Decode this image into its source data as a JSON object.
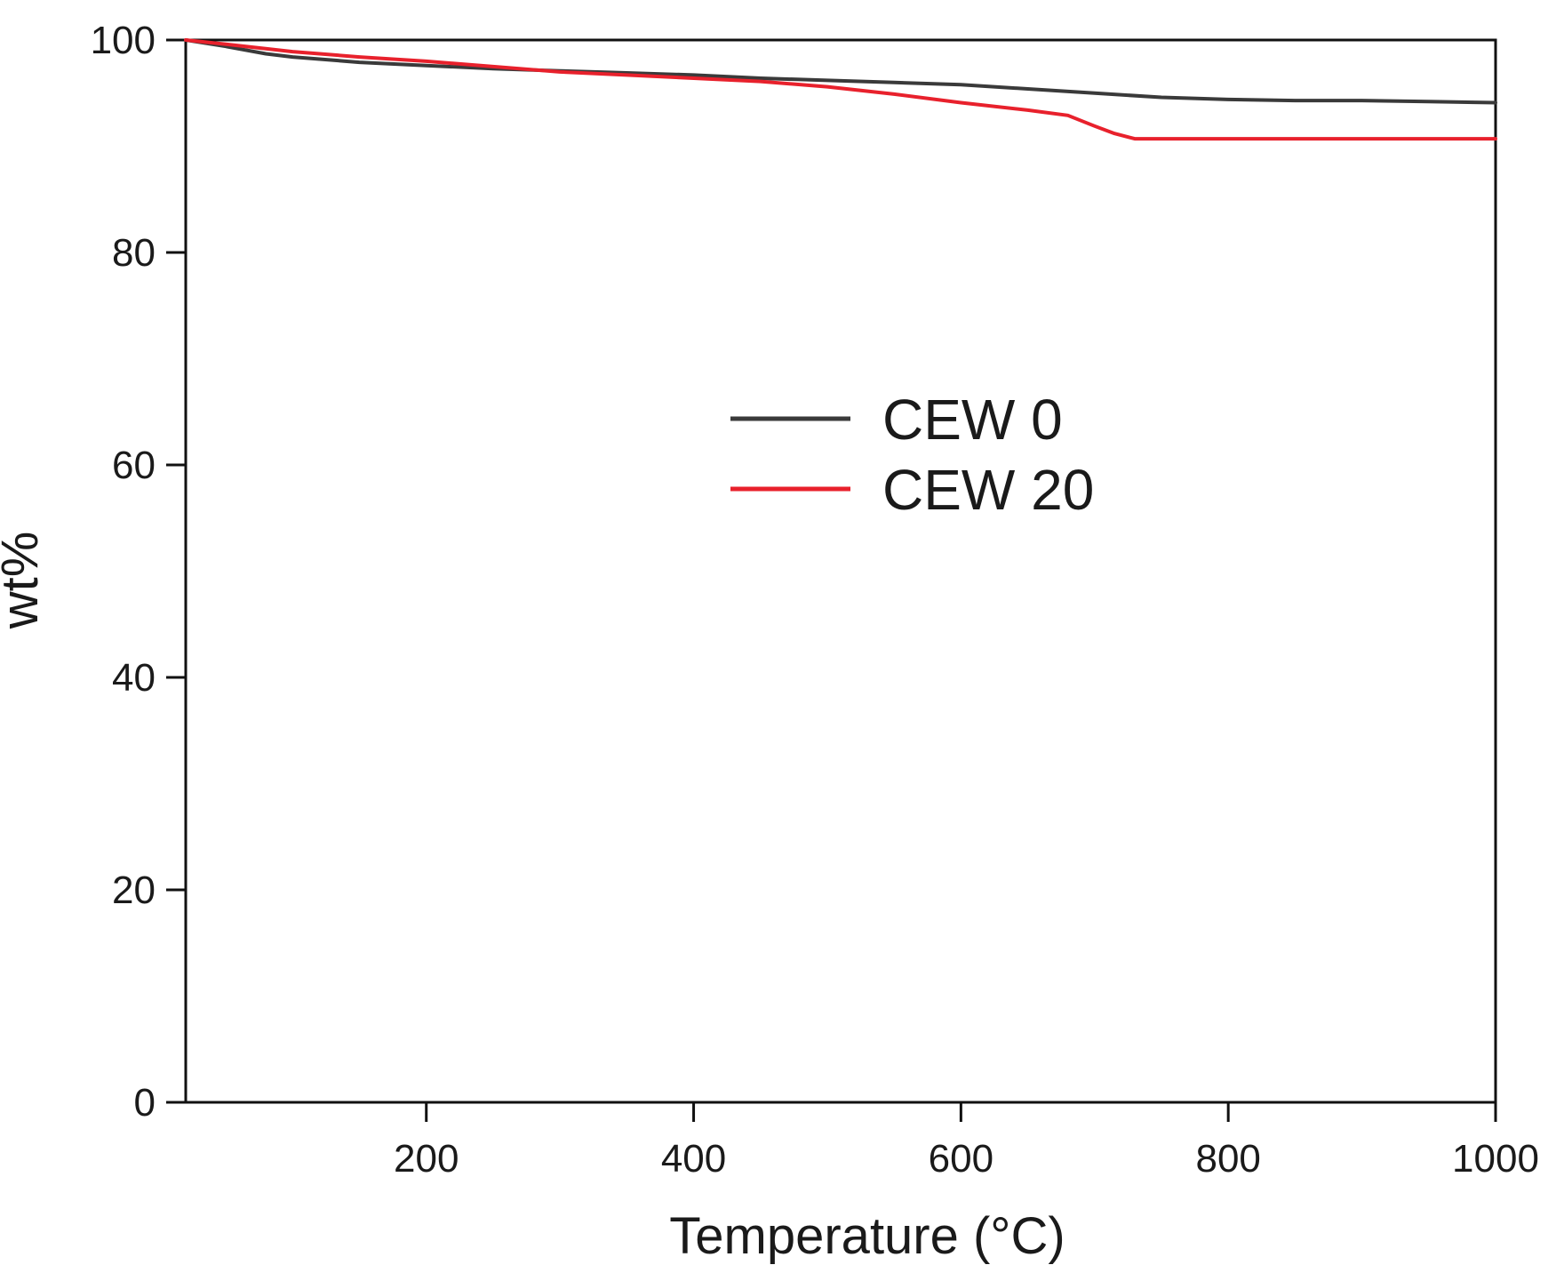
{
  "chart_data": {
    "type": "line",
    "title": "",
    "xlabel": "Temperature (°C)",
    "ylabel": "wt%",
    "xlim": [
      20,
      1000
    ],
    "ylim": [
      0,
      100
    ],
    "xticks": [
      200,
      400,
      600,
      800,
      1000
    ],
    "yticks": [
      0,
      20,
      40,
      60,
      80,
      100
    ],
    "grid": false,
    "legend_position": "center",
    "series": [
      {
        "name": "CEW 0",
        "color": "#3a3a3a",
        "x": [
          20,
          50,
          80,
          100,
          150,
          200,
          250,
          300,
          350,
          400,
          450,
          500,
          550,
          600,
          650,
          700,
          750,
          800,
          850,
          900,
          950,
          1000
        ],
        "y": [
          100,
          99.4,
          98.7,
          98.4,
          97.9,
          97.6,
          97.3,
          97.1,
          96.9,
          96.7,
          96.4,
          96.2,
          96.0,
          95.8,
          95.4,
          95.0,
          94.6,
          94.4,
          94.3,
          94.3,
          94.2,
          94.1
        ]
      },
      {
        "name": "CEW 20",
        "color": "#e8212c",
        "x": [
          20,
          50,
          100,
          150,
          200,
          250,
          300,
          350,
          400,
          450,
          500,
          550,
          600,
          650,
          680,
          700,
          715,
          730,
          750,
          800,
          850,
          900,
          950,
          1000
        ],
        "y": [
          100,
          99.6,
          98.9,
          98.4,
          98.0,
          97.5,
          97.0,
          96.7,
          96.4,
          96.1,
          95.6,
          94.9,
          94.1,
          93.4,
          92.9,
          91.9,
          91.2,
          90.7,
          90.7,
          90.7,
          90.7,
          90.7,
          90.7,
          90.7
        ]
      }
    ]
  }
}
